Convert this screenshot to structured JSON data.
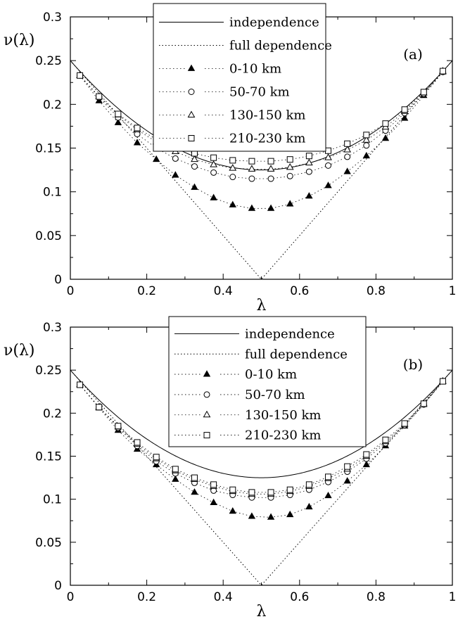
{
  "chart_data": [
    {
      "type": "line",
      "panel_label": "(a)",
      "xlabel": "λ",
      "ylabel": "ν(λ)",
      "xlim": [
        0,
        1
      ],
      "ylim": [
        0,
        0.3
      ],
      "xticks": [
        "0",
        "0.2",
        "0.4",
        "0.6",
        "0.8",
        "1"
      ],
      "yticks": [
        "0",
        "0.05",
        "0.1",
        "0.15",
        "0.2",
        "0.25",
        "0.3"
      ],
      "grid": false,
      "legend_position": "top-center",
      "curves": [
        {
          "name": "independence",
          "style": "solid"
        },
        {
          "name": "full dependence",
          "style": "dotted"
        }
      ],
      "x": [
        0.025,
        0.075,
        0.125,
        0.175,
        0.225,
        0.275,
        0.325,
        0.375,
        0.425,
        0.475,
        0.525,
        0.575,
        0.625,
        0.675,
        0.725,
        0.775,
        0.825,
        0.875,
        0.925,
        0.975
      ],
      "series": [
        {
          "name": "0-10 km",
          "marker": "filled-triangle",
          "values": [
            0.233,
            0.204,
            0.179,
            0.156,
            0.137,
            0.119,
            0.105,
            0.093,
            0.085,
            0.081,
            0.081,
            0.086,
            0.095,
            0.107,
            0.123,
            0.141,
            0.161,
            0.184,
            0.21,
            0.237
          ]
        },
        {
          "name": "50-70 km",
          "marker": "open-circle",
          "values": [
            0.233,
            0.208,
            0.185,
            0.166,
            0.15,
            0.138,
            0.129,
            0.122,
            0.117,
            0.115,
            0.115,
            0.118,
            0.123,
            0.13,
            0.14,
            0.153,
            0.17,
            0.19,
            0.212,
            0.237
          ]
        },
        {
          "name": "130-150 km",
          "marker": "open-triangle",
          "values": [
            0.233,
            0.209,
            0.188,
            0.171,
            0.157,
            0.146,
            0.137,
            0.131,
            0.127,
            0.126,
            0.126,
            0.128,
            0.133,
            0.139,
            0.148,
            0.159,
            0.174,
            0.192,
            0.213,
            0.238
          ]
        },
        {
          "name": "210-230 km",
          "marker": "open-square",
          "values": [
            0.233,
            0.209,
            0.189,
            0.173,
            0.16,
            0.151,
            0.144,
            0.139,
            0.136,
            0.135,
            0.135,
            0.137,
            0.141,
            0.147,
            0.155,
            0.165,
            0.178,
            0.194,
            0.214,
            0.238
          ]
        }
      ]
    },
    {
      "type": "line",
      "panel_label": "(b)",
      "xlabel": "λ",
      "ylabel": "ν(λ)",
      "xlim": [
        0,
        1
      ],
      "ylim": [
        0,
        0.3
      ],
      "xticks": [
        "0",
        "0.2",
        "0.4",
        "0.6",
        "0.8",
        "1"
      ],
      "yticks": [
        "0",
        "0.05",
        "0.1",
        "0.15",
        "0.2",
        "0.25",
        "0.3"
      ],
      "grid": false,
      "legend_position": "top-center",
      "curves": [
        {
          "name": "independence",
          "style": "solid"
        },
        {
          "name": "full dependence",
          "style": "dotted"
        }
      ],
      "x": [
        0.025,
        0.075,
        0.125,
        0.175,
        0.225,
        0.275,
        0.325,
        0.375,
        0.425,
        0.475,
        0.525,
        0.575,
        0.625,
        0.675,
        0.725,
        0.775,
        0.825,
        0.875,
        0.925,
        0.975
      ],
      "series": [
        {
          "name": "0-10 km",
          "marker": "filled-triangle",
          "values": [
            0.233,
            0.206,
            0.18,
            0.158,
            0.14,
            0.123,
            0.108,
            0.096,
            0.086,
            0.08,
            0.079,
            0.082,
            0.091,
            0.104,
            0.121,
            0.14,
            0.162,
            0.185,
            0.21,
            0.237
          ]
        },
        {
          "name": "50-70 km",
          "marker": "open-circle",
          "values": [
            0.233,
            0.207,
            0.183,
            0.162,
            0.144,
            0.13,
            0.119,
            0.11,
            0.105,
            0.102,
            0.102,
            0.105,
            0.111,
            0.12,
            0.132,
            0.147,
            0.165,
            0.186,
            0.21,
            0.237
          ]
        },
        {
          "name": "130-150 km",
          "marker": "open-triangle",
          "values": [
            0.233,
            0.207,
            0.184,
            0.164,
            0.147,
            0.133,
            0.123,
            0.115,
            0.109,
            0.106,
            0.106,
            0.109,
            0.115,
            0.124,
            0.135,
            0.15,
            0.167,
            0.187,
            0.211,
            0.237
          ]
        },
        {
          "name": "210-230 km",
          "marker": "open-square",
          "values": [
            0.233,
            0.207,
            0.185,
            0.166,
            0.149,
            0.135,
            0.125,
            0.117,
            0.111,
            0.108,
            0.108,
            0.111,
            0.117,
            0.126,
            0.138,
            0.152,
            0.169,
            0.188,
            0.211,
            0.237
          ]
        }
      ]
    }
  ]
}
